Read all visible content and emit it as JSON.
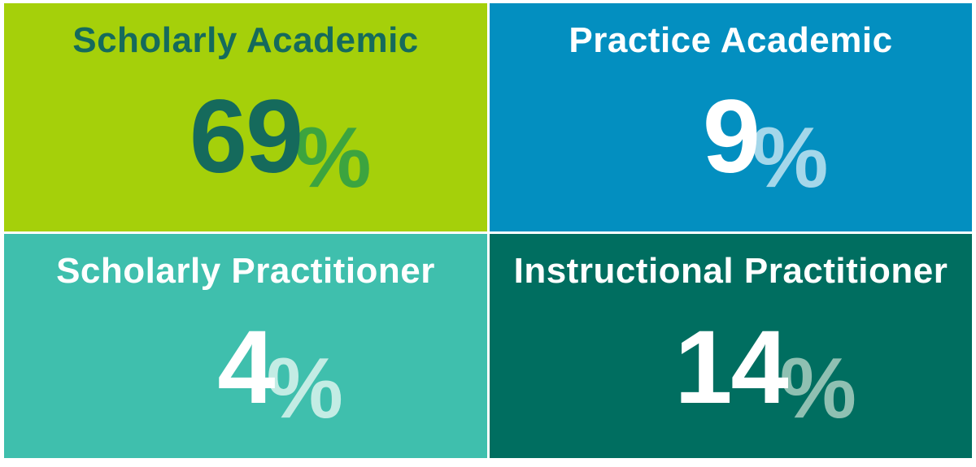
{
  "page": {
    "background": "#ffffff"
  },
  "chart_data": {
    "type": "table",
    "layout": "2x2-quadrant-grid",
    "categories": [
      "Scholarly Academic",
      "Practice Academic",
      "Scholarly Practitioner",
      "Instructional Practitioner"
    ],
    "values": [
      69,
      9,
      4,
      14
    ],
    "unit": "%",
    "legend_position": "none",
    "grid": false
  },
  "tiles": [
    {
      "label": "Scholarly Academic",
      "value": "69",
      "percent_sign": "%",
      "bg": "#a5d00a",
      "text_color": "#156a5c",
      "percent_color": "#3ca43f"
    },
    {
      "label": "Practice Academic",
      "value": "9",
      "percent_sign": "%",
      "bg": "#038fc0",
      "text_color": "#ffffff",
      "percent_color": "#a4d7ea"
    },
    {
      "label": "Scholarly Practitioner",
      "value": "4",
      "percent_sign": "%",
      "bg": "#3fbfad",
      "text_color": "#ffffff",
      "percent_color": "#c3ece4"
    },
    {
      "label": "Instructional Practitioner",
      "value": "14",
      "percent_sign": "%",
      "bg": "#006e60",
      "text_color": "#ffffff",
      "percent_color": "#8fc0b2"
    }
  ]
}
